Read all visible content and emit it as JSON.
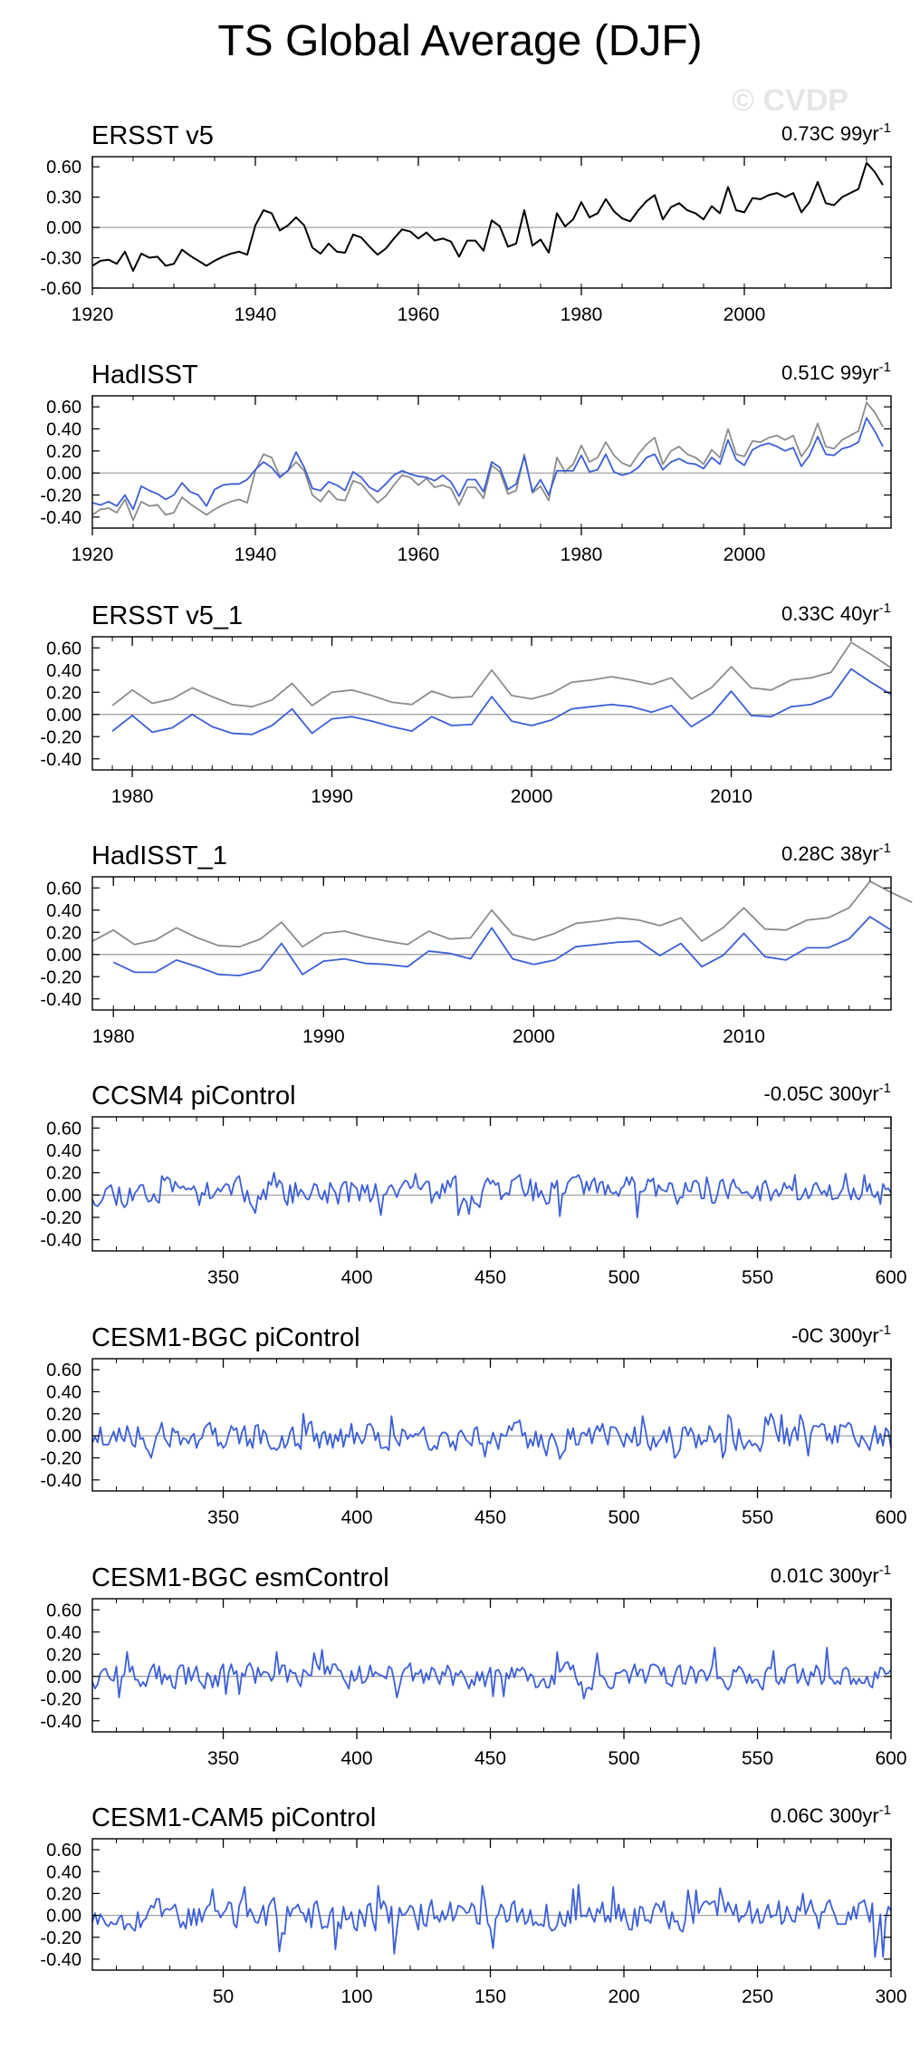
{
  "page": {
    "title": "TS Global Average (DJF)",
    "watermark": "© CVDP"
  },
  "colors": {
    "model_line": "#3b5fd6",
    "observed_line": "#000000",
    "comparison_line": "#8c8c8c",
    "zero_line": "#9a9a9a"
  },
  "chart_data": [
    {
      "type": "line",
      "title": "ERSST v5",
      "trend_label": "0.73C 99yr",
      "trend_superscript": "-1",
      "xlim": [
        1920,
        2018
      ],
      "ylim": [
        -0.6,
        0.7
      ],
      "yticks": [
        "0.60",
        "0.30",
        "0.00",
        "-0.30",
        "-0.60"
      ],
      "ytick_values": [
        0.6,
        0.3,
        0,
        -0.3,
        -0.6
      ],
      "xticks": [
        "1920",
        "1940",
        "1960",
        "1980",
        "2000"
      ],
      "xtick_values": [
        1920,
        1940,
        1960,
        1980,
        2000
      ],
      "series": [
        {
          "name": "ERSST v5",
          "color": "#000000",
          "x_start": 1920,
          "x_step": 1,
          "values": [
            -0.38,
            -0.33,
            -0.32,
            -0.36,
            -0.24,
            -0.43,
            -0.26,
            -0.3,
            -0.29,
            -0.38,
            -0.36,
            -0.22,
            -0.28,
            -0.33,
            -0.38,
            -0.33,
            -0.29,
            -0.26,
            -0.24,
            -0.27,
            0.02,
            0.17,
            0.14,
            -0.03,
            0.02,
            0.1,
            0.02,
            -0.2,
            -0.26,
            -0.16,
            -0.24,
            -0.25,
            -0.07,
            -0.1,
            -0.19,
            -0.27,
            -0.21,
            -0.11,
            -0.02,
            -0.04,
            -0.11,
            -0.05,
            -0.13,
            -0.11,
            -0.14,
            -0.29,
            -0.13,
            -0.13,
            -0.23,
            0.07,
            0.01,
            -0.19,
            -0.16,
            0.17,
            -0.18,
            -0.12,
            -0.25,
            0.14,
            0.01,
            0.08,
            0.25,
            0.1,
            0.14,
            0.28,
            0.16,
            0.09,
            0.06,
            0.17,
            0.26,
            0.32,
            0.08,
            0.2,
            0.24,
            0.17,
            0.14,
            0.08,
            0.21,
            0.14,
            0.4,
            0.17,
            0.15,
            0.29,
            0.28,
            0.32,
            0.34,
            0.3,
            0.34,
            0.15,
            0.25,
            0.45,
            0.24,
            0.22,
            0.3,
            0.34,
            0.38,
            0.64,
            0.55,
            0.42
          ]
        }
      ]
    },
    {
      "type": "line",
      "title": "HadISST",
      "trend_label": "0.51C 99yr",
      "trend_superscript": "-1",
      "xlim": [
        1920,
        2018
      ],
      "ylim": [
        -0.5,
        0.7
      ],
      "yticks": [
        "0.60",
        "0.40",
        "0.20",
        "0.00",
        "-0.20",
        "-0.40"
      ],
      "ytick_values": [
        0.6,
        0.4,
        0.2,
        0,
        -0.2,
        -0.4
      ],
      "xticks": [
        "1920",
        "1940",
        "1960",
        "1980",
        "2000"
      ],
      "xtick_values": [
        1920,
        1940,
        1960,
        1980,
        2000
      ],
      "series": [
        {
          "name": "ERSST v5",
          "color": "#8c8c8c",
          "x_start": 1920,
          "x_step": 1,
          "values": [
            -0.38,
            -0.33,
            -0.32,
            -0.36,
            -0.24,
            -0.43,
            -0.26,
            -0.3,
            -0.29,
            -0.38,
            -0.36,
            -0.22,
            -0.28,
            -0.33,
            -0.38,
            -0.33,
            -0.29,
            -0.26,
            -0.24,
            -0.27,
            0.02,
            0.17,
            0.14,
            -0.03,
            0.02,
            0.1,
            0.02,
            -0.2,
            -0.26,
            -0.16,
            -0.24,
            -0.25,
            -0.07,
            -0.1,
            -0.19,
            -0.27,
            -0.21,
            -0.11,
            -0.02,
            -0.04,
            -0.11,
            -0.05,
            -0.13,
            -0.11,
            -0.14,
            -0.29,
            -0.13,
            -0.13,
            -0.23,
            0.07,
            0.01,
            -0.19,
            -0.16,
            0.17,
            -0.18,
            -0.12,
            -0.25,
            0.14,
            0.01,
            0.08,
            0.25,
            0.1,
            0.14,
            0.28,
            0.16,
            0.09,
            0.06,
            0.17,
            0.26,
            0.32,
            0.08,
            0.2,
            0.24,
            0.17,
            0.14,
            0.08,
            0.21,
            0.14,
            0.4,
            0.17,
            0.15,
            0.29,
            0.28,
            0.32,
            0.34,
            0.3,
            0.34,
            0.15,
            0.25,
            0.45,
            0.24,
            0.22,
            0.3,
            0.34,
            0.38,
            0.64,
            0.55,
            0.42
          ]
        },
        {
          "name": "HadISST",
          "color": "#3b5fd6",
          "x_start": 1920,
          "x_step": 1,
          "values": [
            -0.27,
            -0.29,
            -0.26,
            -0.3,
            -0.2,
            -0.33,
            -0.12,
            -0.16,
            -0.19,
            -0.24,
            -0.2,
            -0.09,
            -0.17,
            -0.2,
            -0.3,
            -0.15,
            -0.11,
            -0.1,
            -0.1,
            -0.06,
            0.03,
            0.1,
            0.05,
            -0.04,
            0.02,
            0.19,
            0.05,
            -0.14,
            -0.16,
            -0.08,
            -0.11,
            -0.16,
            0.01,
            -0.04,
            -0.13,
            -0.17,
            -0.1,
            -0.02,
            0.02,
            -0.01,
            -0.03,
            -0.04,
            -0.07,
            -0.02,
            -0.08,
            -0.21,
            -0.06,
            -0.06,
            -0.17,
            0.1,
            0.05,
            -0.15,
            -0.1,
            0.15,
            -0.17,
            -0.06,
            -0.2,
            0.02,
            0.02,
            0.02,
            0.16,
            0.01,
            0.03,
            0.17,
            0.01,
            -0.02,
            0.0,
            0.05,
            0.14,
            0.17,
            0.03,
            0.1,
            0.13,
            0.09,
            0.08,
            0.04,
            0.14,
            0.08,
            0.3,
            0.12,
            0.07,
            0.21,
            0.25,
            0.27,
            0.24,
            0.2,
            0.23,
            0.06,
            0.16,
            0.33,
            0.17,
            0.16,
            0.22,
            0.24,
            0.28,
            0.5,
            0.38,
            0.24
          ]
        }
      ]
    },
    {
      "type": "line",
      "title": "ERSST v5_1",
      "trend_label": "0.33C 40yr",
      "trend_superscript": "-1",
      "xlim": [
        1978,
        2018
      ],
      "ylim": [
        -0.5,
        0.7
      ],
      "yticks": [
        "0.60",
        "0.40",
        "0.20",
        "0.00",
        "-0.20",
        "-0.40"
      ],
      "ytick_values": [
        0.6,
        0.4,
        0.2,
        0,
        -0.2,
        -0.4
      ],
      "xticks": [
        "1980",
        "1990",
        "2000",
        "2010"
      ],
      "xtick_values": [
        1980,
        1990,
        2000,
        2010
      ],
      "series": [
        {
          "name": "ERSST v5",
          "color": "#8c8c8c",
          "x_start": 1979,
          "x_step": 1,
          "values": [
            0.08,
            0.22,
            0.1,
            0.14,
            0.24,
            0.16,
            0.09,
            0.07,
            0.13,
            0.28,
            0.08,
            0.2,
            0.22,
            0.17,
            0.11,
            0.09,
            0.21,
            0.15,
            0.16,
            0.4,
            0.17,
            0.14,
            0.19,
            0.29,
            0.31,
            0.34,
            0.31,
            0.27,
            0.33,
            0.14,
            0.24,
            0.43,
            0.24,
            0.22,
            0.31,
            0.33,
            0.38,
            0.65,
            0.54,
            0.42
          ]
        },
        {
          "name": "ERSST v5_1",
          "color": "#3b5fd6",
          "x_start": 1979,
          "x_step": 1,
          "values": [
            -0.15,
            -0.01,
            -0.16,
            -0.12,
            0.0,
            -0.11,
            -0.17,
            -0.18,
            -0.1,
            0.05,
            -0.17,
            -0.04,
            -0.02,
            -0.06,
            -0.11,
            -0.15,
            -0.02,
            -0.1,
            -0.09,
            0.16,
            -0.06,
            -0.1,
            -0.05,
            0.05,
            0.07,
            0.09,
            0.07,
            0.02,
            0.08,
            -0.11,
            0.0,
            0.21,
            -0.01,
            -0.02,
            0.07,
            0.09,
            0.16,
            0.41,
            0.29,
            0.18
          ]
        }
      ]
    },
    {
      "type": "line",
      "title": "HadISST_1",
      "trend_label": "0.28C 38yr",
      "trend_superscript": "-1",
      "xlim": [
        1979,
        2017
      ],
      "ylim": [
        -0.5,
        0.7
      ],
      "yticks": [
        "0.60",
        "0.40",
        "0.20",
        "0.00",
        "-0.20",
        "-0.40"
      ],
      "ytick_values": [
        0.6,
        0.4,
        0.2,
        0,
        -0.2,
        -0.4
      ],
      "xticks": [
        "1980",
        "1990",
        "2000",
        "2010"
      ],
      "xtick_values": [
        1980,
        1990,
        2000,
        2010
      ],
      "series": [
        {
          "name": "HadISST",
          "color": "#8c8c8c",
          "x_start": 1979,
          "x_step": 1,
          "values": [
            0.12,
            0.22,
            0.09,
            0.13,
            0.24,
            0.15,
            0.08,
            0.07,
            0.14,
            0.29,
            0.07,
            0.19,
            0.21,
            0.16,
            0.12,
            0.09,
            0.21,
            0.14,
            0.15,
            0.4,
            0.18,
            0.13,
            0.19,
            0.28,
            0.3,
            0.33,
            0.31,
            0.26,
            0.33,
            0.12,
            0.24,
            0.42,
            0.23,
            0.22,
            0.31,
            0.33,
            0.42,
            0.66,
            0.56,
            0.47
          ]
        },
        {
          "name": "HadISST_1",
          "color": "#3b5fd6",
          "x_start": 1980,
          "x_step": 1,
          "values": [
            -0.07,
            -0.16,
            -0.16,
            -0.05,
            -0.11,
            -0.18,
            -0.19,
            -0.14,
            0.1,
            -0.18,
            -0.06,
            -0.04,
            -0.08,
            -0.09,
            -0.11,
            0.03,
            0.01,
            -0.04,
            0.24,
            -0.04,
            -0.09,
            -0.05,
            0.07,
            0.09,
            0.11,
            0.12,
            -0.01,
            0.1,
            -0.11,
            -0.01,
            0.19,
            -0.02,
            -0.05,
            0.06,
            0.06,
            0.14,
            0.34,
            0.22
          ]
        }
      ]
    },
    {
      "type": "line",
      "title": "CCSM4 piControl",
      "trend_label": "-0.05C 300yr",
      "trend_superscript": "-1",
      "xlim": [
        301,
        600
      ],
      "ylim": [
        -0.5,
        0.7
      ],
      "yticks": [
        "0.60",
        "0.40",
        "0.20",
        "0.00",
        "-0.20",
        "-0.40"
      ],
      "ytick_values": [
        0.6,
        0.4,
        0.2,
        0,
        -0.2,
        -0.4
      ],
      "xticks": [
        "350",
        "400",
        "450",
        "500",
        "550",
        "600"
      ],
      "xtick_values": [
        350,
        400,
        450,
        500,
        550,
        600
      ],
      "series": [
        {
          "name": "CCSM4 piControl",
          "color": "#3b5fd6",
          "x_start": 301,
          "x_step": 1,
          "values": [],
          "synthetic": {
            "count": 300,
            "amplitude": 0.09,
            "spike_up": 0.22,
            "spike_down": -0.22,
            "seed": 11,
            "bias": 0.02
          }
        }
      ]
    },
    {
      "type": "line",
      "title": "CESM1-BGC piControl",
      "trend_label": "-0C 300yr",
      "trend_superscript": "-1",
      "xlim": [
        301,
        600
      ],
      "ylim": [
        -0.5,
        0.7
      ],
      "yticks": [
        "0.60",
        "0.40",
        "0.20",
        "0.00",
        "-0.20",
        "-0.40"
      ],
      "ytick_values": [
        0.6,
        0.4,
        0.2,
        0,
        -0.2,
        -0.4
      ],
      "xticks": [
        "350",
        "400",
        "450",
        "500",
        "550",
        "600"
      ],
      "xtick_values": [
        350,
        400,
        450,
        500,
        550,
        600
      ],
      "series": [
        {
          "name": "CESM1-BGC piControl",
          "color": "#3b5fd6",
          "x_start": 301,
          "x_step": 1,
          "values": [],
          "synthetic": {
            "count": 300,
            "amplitude": 0.09,
            "spike_up": 0.21,
            "spike_down": -0.23,
            "seed": 23,
            "bias": 0.0
          }
        }
      ]
    },
    {
      "type": "line",
      "title": "CESM1-BGC esmControl",
      "trend_label": "0.01C 300yr",
      "trend_superscript": "-1",
      "xlim": [
        301,
        600
      ],
      "ylim": [
        -0.5,
        0.7
      ],
      "yticks": [
        "0.60",
        "0.40",
        "0.20",
        "0.00",
        "-0.20",
        "-0.40"
      ],
      "ytick_values": [
        0.6,
        0.4,
        0.2,
        0,
        -0.2,
        -0.4
      ],
      "xticks": [
        "350",
        "400",
        "450",
        "500",
        "550",
        "600"
      ],
      "xtick_values": [
        350,
        400,
        450,
        500,
        550,
        600
      ],
      "series": [
        {
          "name": "CESM1-BGC esmControl",
          "color": "#3b5fd6",
          "x_start": 301,
          "x_step": 1,
          "values": [],
          "synthetic": {
            "count": 300,
            "amplitude": 0.08,
            "spike_up": 0.28,
            "spike_down": -0.2,
            "seed": 37,
            "bias": 0.0
          }
        }
      ]
    },
    {
      "type": "line",
      "title": "CESM1-CAM5 piControl",
      "trend_label": "0.06C 300yr",
      "trend_superscript": "-1",
      "xlim": [
        1,
        300
      ],
      "ylim": [
        -0.5,
        0.7
      ],
      "yticks": [
        "0.60",
        "0.40",
        "0.20",
        "0.00",
        "-0.20",
        "-0.40"
      ],
      "ytick_values": [
        0.6,
        0.4,
        0.2,
        0,
        -0.2,
        -0.4
      ],
      "xticks": [
        "50",
        "100",
        "150",
        "200",
        "250",
        "300"
      ],
      "xtick_values": [
        50,
        100,
        150,
        200,
        250,
        300
      ],
      "series": [
        {
          "name": "CESM1-CAM5 piControl",
          "color": "#3b5fd6",
          "x_start": 1,
          "x_step": 1,
          "values": [],
          "synthetic": {
            "count": 300,
            "amplitude": 0.1,
            "spike_up": 0.28,
            "spike_down": -0.4,
            "seed": 53,
            "bias": 0.0
          }
        }
      ]
    }
  ]
}
